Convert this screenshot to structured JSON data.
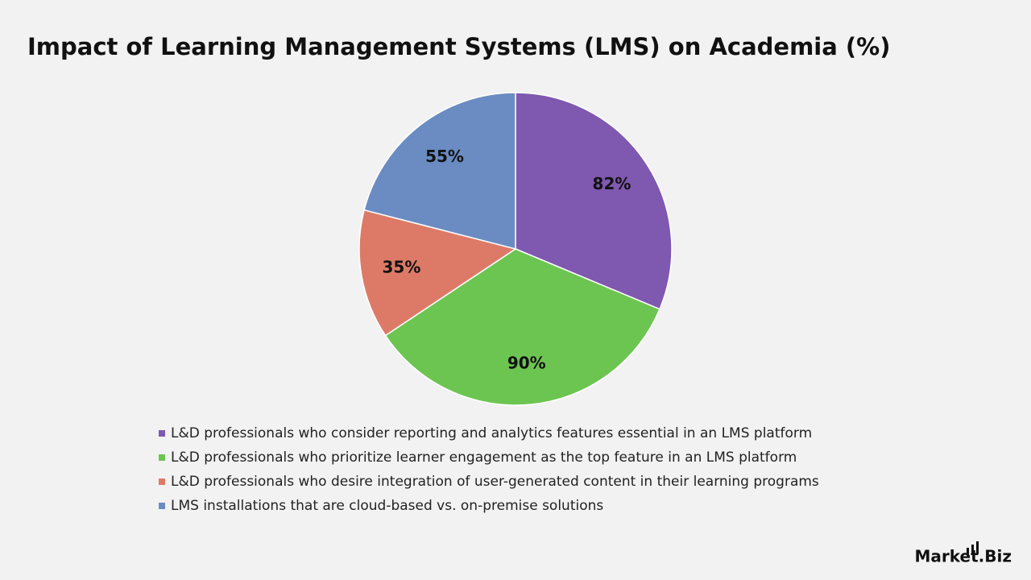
{
  "chart_data": {
    "type": "pie",
    "title": "Impact of Learning Management Systems (LMS) on Academia (%)",
    "categories": [
      "L&D professionals who consider reporting and analytics features essential in an LMS platform",
      "L&D professionals who prioritize learner engagement as the top feature in an LMS platform",
      "L&D professionals who desire integration of user-generated content in their learning programs",
      "LMS installations that are cloud-based vs. on-premise solutions"
    ],
    "values": [
      82,
      90,
      35,
      55
    ],
    "value_labels": [
      "82%",
      "90%",
      "35%",
      "55%"
    ],
    "colors": [
      "#7f58af",
      "#6cc551",
      "#dd7a67",
      "#6a8cc2"
    ],
    "legend": "bottom"
  },
  "brand": "Market.Biz"
}
